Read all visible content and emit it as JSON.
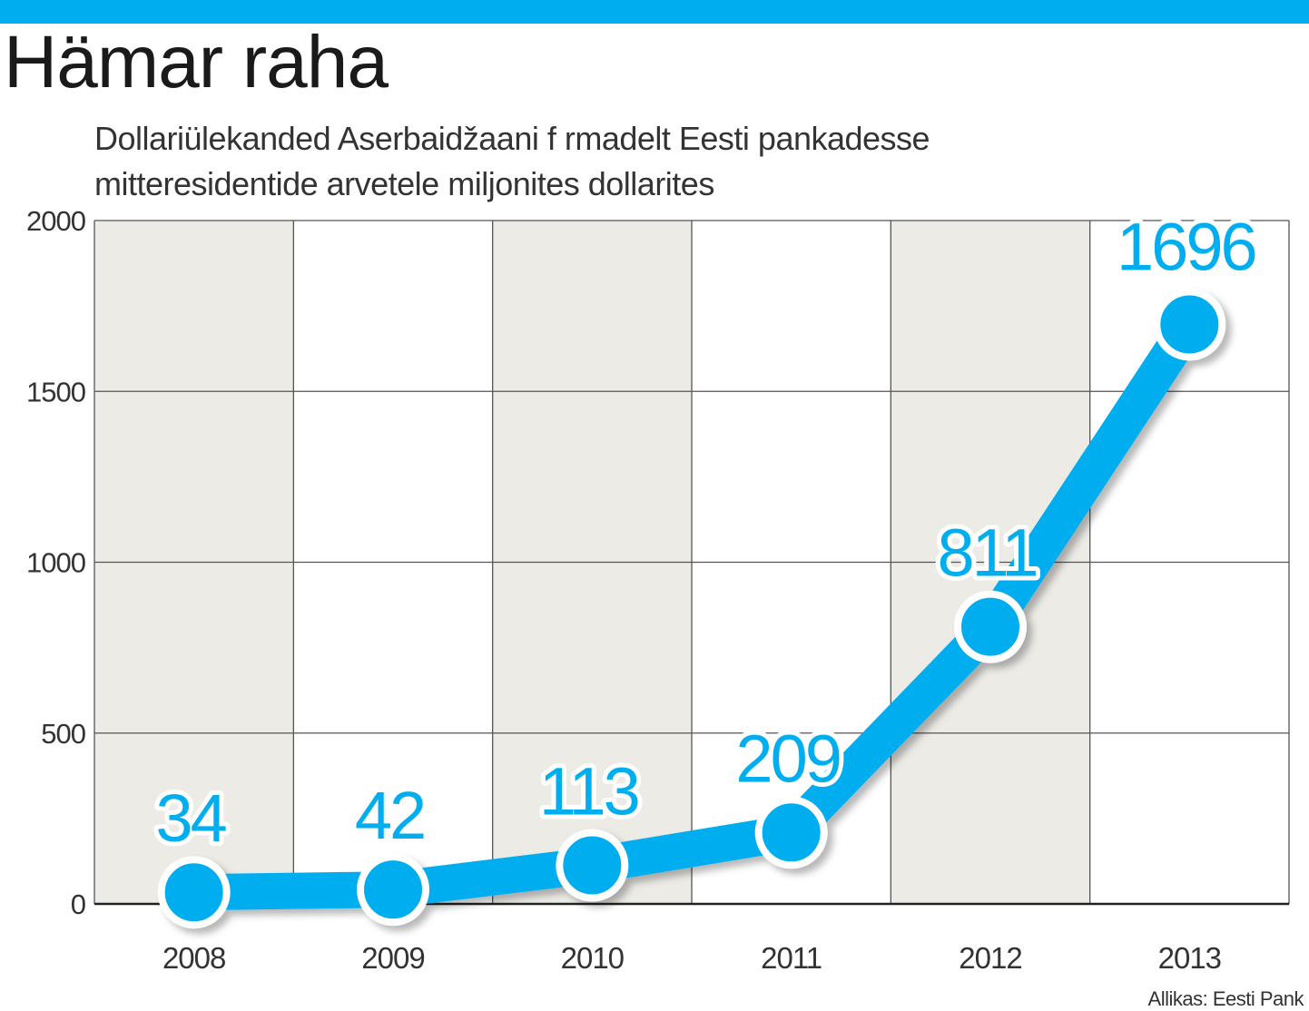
{
  "header": {
    "title": "Hämar raha",
    "subtitle_line1": "Dollariülekanded Aserbaidžaani f rmadelt Eesti pankadesse",
    "subtitle_line2": "mitteresidentide arvetele miljonites dollarites"
  },
  "source": "Allikas: Eesti Pank",
  "colors": {
    "accent": "#00aeef",
    "shaded_band": "#ecebe6",
    "grid": "#555555",
    "text": "#333333"
  },
  "chart_data": {
    "type": "line",
    "title": "Hämar raha",
    "subtitle": "Dollariülekanded Aserbaidžaani f rmadelt Eesti pankadesse mitteresidentide arvetele miljonites dollarites",
    "categories": [
      "2008",
      "2009",
      "2010",
      "2011",
      "2012",
      "2013"
    ],
    "values": [
      34,
      42,
      113,
      209,
      811,
      1696
    ],
    "data_labels": [
      "34",
      "42",
      "113",
      "209",
      "811",
      "1696"
    ],
    "ylim": [
      0,
      2000
    ],
    "yticks": [
      "0",
      "500",
      "1000",
      "1500",
      "2000"
    ],
    "xlabel": "",
    "ylabel": "",
    "grid": true,
    "legend": "none"
  }
}
